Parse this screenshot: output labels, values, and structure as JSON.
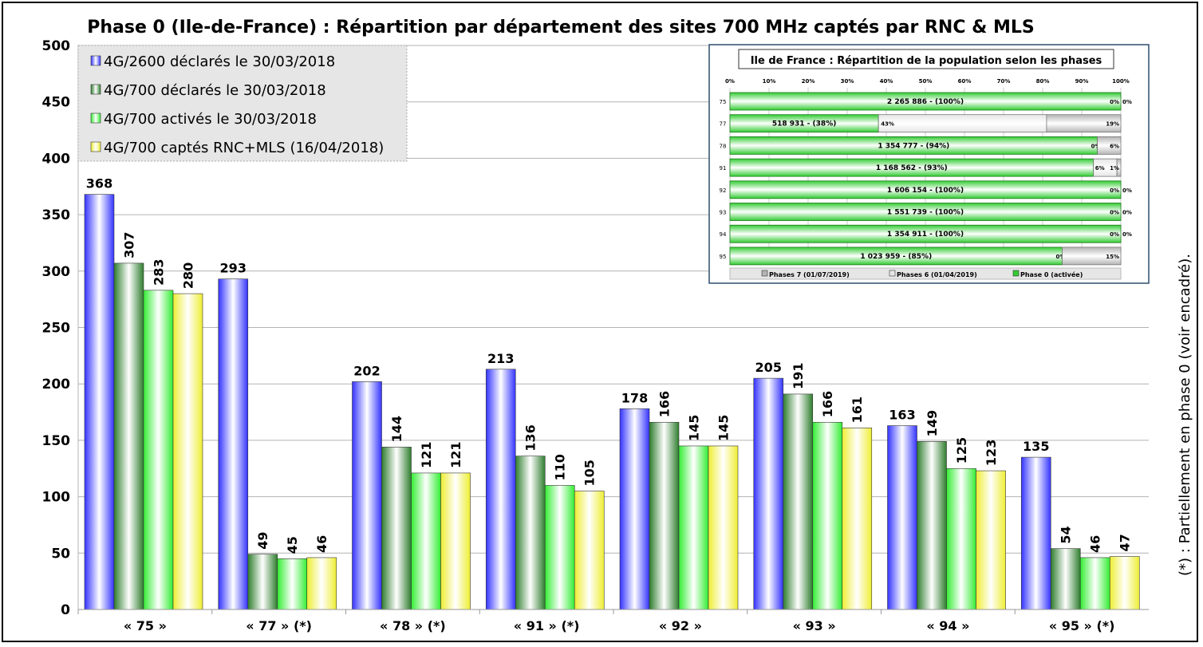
{
  "chart_data": [
    {
      "type": "bar",
      "title": "Phase 0 (Ile-de-France) : Répartition par département des sites 700 MHz captés par RNC & MLS",
      "categories": [
        "« 75 »",
        "« 77 » (*)",
        "« 78 » (*)",
        "« 91 » (*)",
        "« 92 »",
        "« 93 »",
        "« 94 »",
        "« 95 » (*)"
      ],
      "ylim": [
        0,
        500
      ],
      "yticks": [
        0,
        50,
        100,
        150,
        200,
        250,
        300,
        350,
        400,
        450,
        500
      ],
      "grid": true,
      "legend_placement": "top-left",
      "side_note": "(*) : Partiellement en phase 0 (voir encadré).",
      "series": [
        {
          "name": "4G/2600 déclarés le 30/03/2018",
          "color": "#3333ff",
          "values": [
            368,
            293,
            202,
            213,
            178,
            205,
            163,
            135
          ]
        },
        {
          "name": "4G/700 déclarés le 30/03/2018",
          "color": "#2e7d2e",
          "values": [
            307,
            49,
            144,
            136,
            166,
            191,
            149,
            54
          ]
        },
        {
          "name": "4G/700 activés le 30/03/2018",
          "color": "#33ee33",
          "values": [
            283,
            45,
            121,
            110,
            145,
            166,
            125,
            46
          ]
        },
        {
          "name": "4G/700 captés RNC+MLS (16/04/2018)",
          "color": "#eeee33",
          "values": [
            280,
            46,
            121,
            105,
            145,
            161,
            123,
            47
          ]
        }
      ]
    },
    {
      "type": "bar",
      "orientation": "horizontal-stacked",
      "title": "Ile de France : Répartition de la population selon les phases",
      "categories": [
        "75",
        "77",
        "78",
        "91",
        "92",
        "93",
        "94",
        "95"
      ],
      "xticks": [
        "0%",
        "10%",
        "20%",
        "30%",
        "40%",
        "50%",
        "60%",
        "70%",
        "80%",
        "90%",
        "100%"
      ],
      "series": [
        {
          "name": "Phase 0 (activée)",
          "color": "#33cc33",
          "values": [
            100,
            38,
            94,
            93,
            100,
            100,
            100,
            85
          ],
          "labels": [
            "2 265 886 - (100%)",
            "518 931 - (38%)",
            "1 354 777 - (94%)",
            "1 168 562 - (93%)",
            "1 606 154 - (100%)",
            "1 551 739 - (100%)",
            "1 354 911 - (100%)",
            "1 023 959 - (85%)"
          ]
        },
        {
          "name": "Phases 6 (01/04/2019)",
          "color": "#e6e6e6",
          "values": [
            0,
            43,
            0,
            6,
            0,
            0,
            0,
            0
          ],
          "labels": [
            "0%",
            "43%",
            "0%",
            "6%",
            "0%",
            "0%",
            "0%",
            "0%"
          ]
        },
        {
          "name": "Phases 7 (01/07/2019)",
          "color": "#b4b4b4",
          "values": [
            0,
            19,
            6,
            1,
            0,
            0,
            0,
            15
          ],
          "labels": [
            "0%",
            "19%",
            "6%",
            "1%",
            "0%",
            "0%",
            "0%",
            "15%"
          ]
        }
      ]
    }
  ]
}
